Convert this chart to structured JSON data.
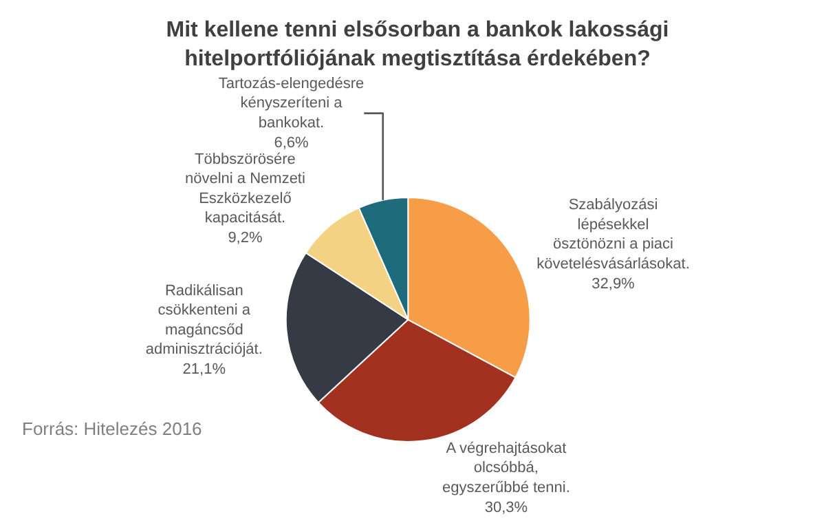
{
  "chart_data": {
    "type": "pie",
    "title": "Mit kellene tenni elsősorban a bankok lakossági hitelportfóliójának megtisztítása érdekében?",
    "categories": [
      "Szabályozási lépésekkel ösztönözni a piaci követelésvásárlásokat.",
      "A végrehajtásokat olcsóbbá, egyszerűbbé tenni.",
      "Radikálisan csökkenteni a magáncsőd adminisztrációját.",
      "Többszörösére növelni a Nemzeti Eszközkezelő kapacitását.",
      "Tartozás-elengedésre kényszeríteni a bankokat."
    ],
    "values": [
      32.9,
      30.3,
      21.1,
      9.2,
      6.6
    ],
    "value_labels": [
      "32,9%",
      "30,3%",
      "21,1%",
      "9,2%",
      "6,6%"
    ],
    "colors": [
      "#f79d47",
      "#a2311f",
      "#353a44",
      "#f3d383",
      "#1d6b7b"
    ],
    "annotations": [
      "Forrás: Hitelezés 2016"
    ],
    "legend": false
  }
}
